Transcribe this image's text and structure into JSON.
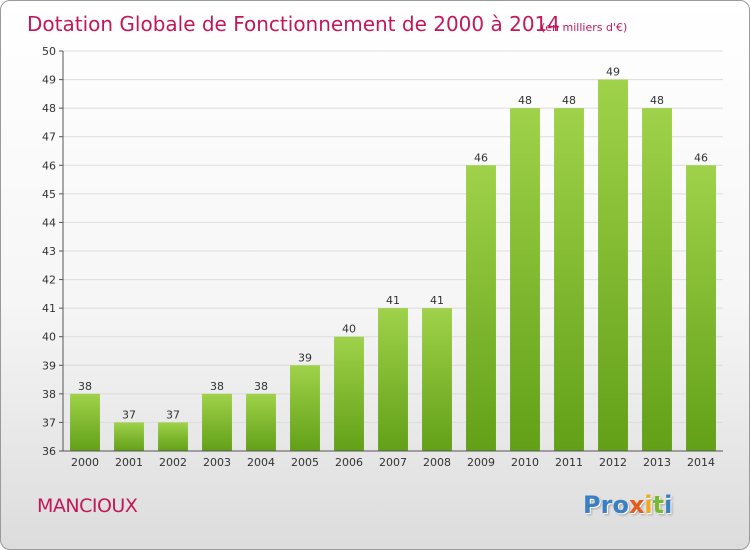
{
  "title": "Dotation Globale de Fonctionnement de 2000 à 2014",
  "unit": "(en milliers d'€)",
  "commune": "MANCIOUX",
  "logo": {
    "letters": [
      "P",
      "r",
      "o",
      "x",
      "i",
      "t",
      "i"
    ]
  },
  "colors": {
    "bar_top": "#9fd24a",
    "bar_bottom": "#62a018",
    "title": "#c2185b",
    "logo": [
      "#3a7fc4",
      "#3a7fc4",
      "#3a7fc4",
      "#e65c1a",
      "#f2a81d",
      "#7ab834",
      "#3a7fc4"
    ]
  },
  "chart_data": {
    "type": "bar",
    "categories": [
      "2000",
      "2001",
      "2002",
      "2003",
      "2004",
      "2005",
      "2006",
      "2007",
      "2008",
      "2009",
      "2010",
      "2011",
      "2012",
      "2013",
      "2014"
    ],
    "values": [
      38,
      37,
      37,
      38,
      38,
      39,
      40,
      41,
      41,
      46,
      48,
      48,
      49,
      48,
      46
    ],
    "ylim": [
      36,
      50
    ],
    "yticks": [
      36,
      37,
      38,
      39,
      40,
      41,
      42,
      43,
      44,
      45,
      46,
      47,
      48,
      49,
      50
    ],
    "grid": true,
    "legend": "none"
  }
}
